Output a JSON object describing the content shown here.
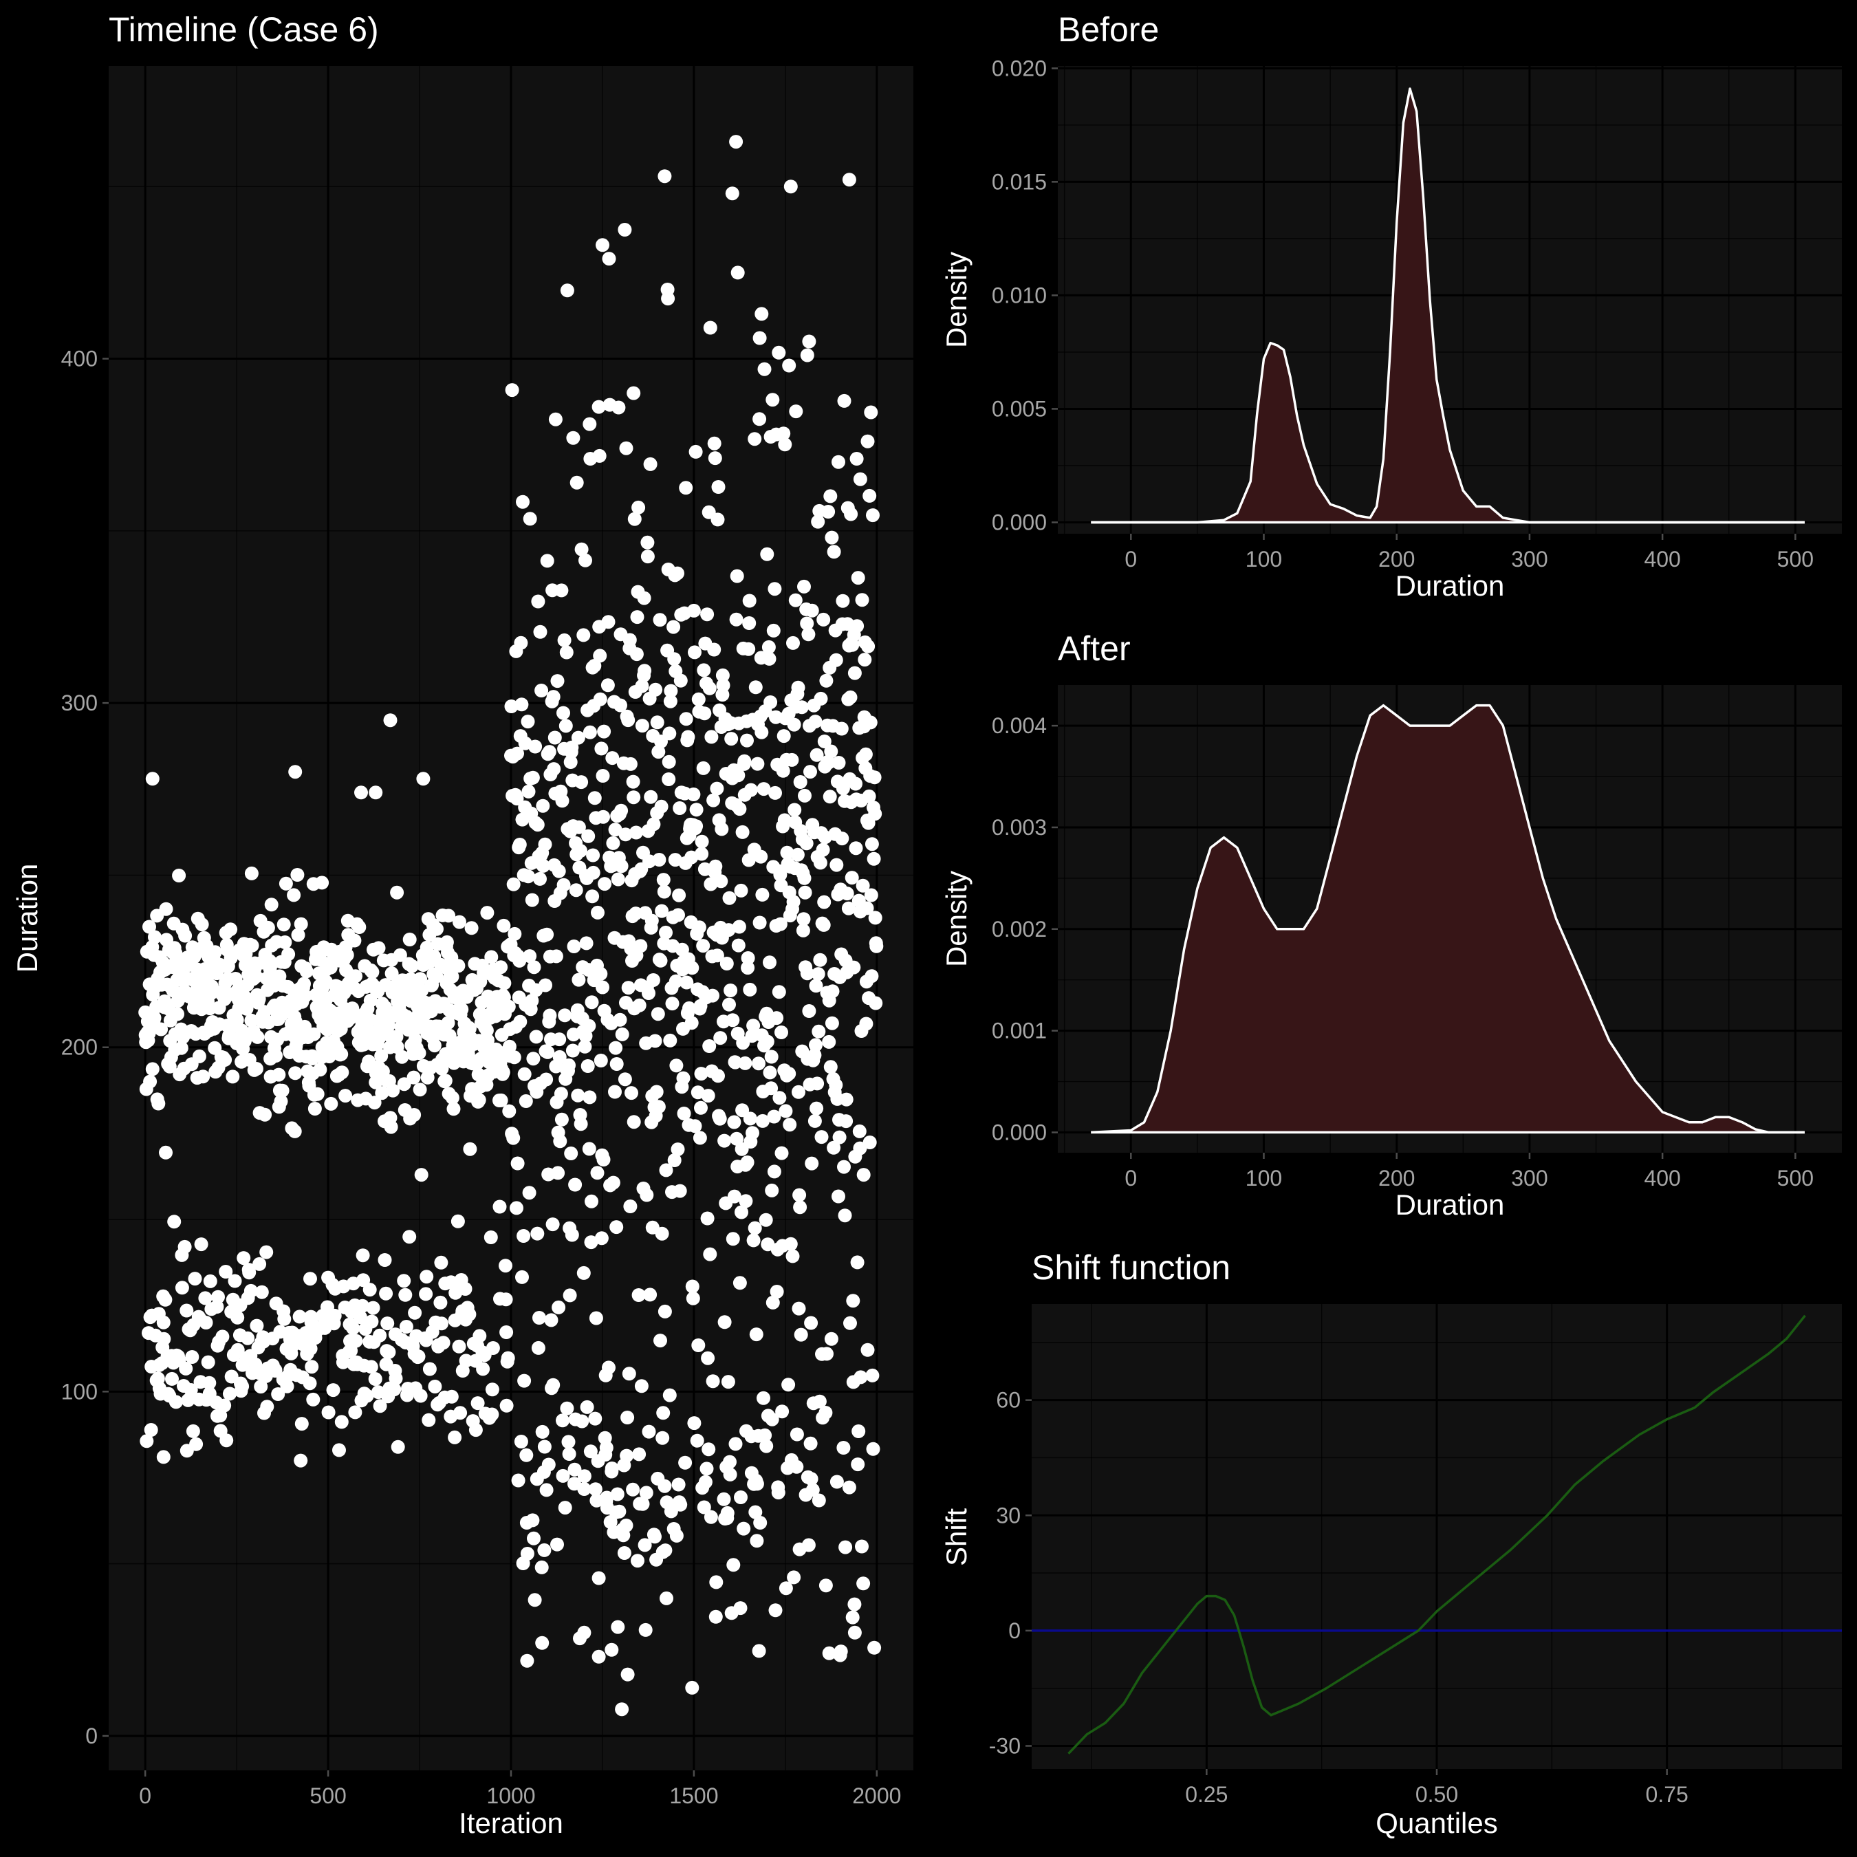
{
  "colors": {
    "background": "#000000",
    "panel": "#111111",
    "points": "#ffffff",
    "density_fill": "#3a1618",
    "density_line": "#ffffff",
    "shift_line": "#1a5c12",
    "zero_line": "#0a0a8c",
    "tick_text": "#a6a6a6"
  },
  "chart_data": [
    {
      "id": "timeline",
      "type": "scatter",
      "title": "Timeline (Case 6)",
      "xlabel": "Iteration",
      "ylabel": "Duration",
      "xlim": [
        -100,
        2100
      ],
      "ylim": [
        -10,
        485
      ],
      "xticks": [
        0,
        500,
        1000,
        1500,
        2000
      ],
      "yticks": [
        0,
        100,
        200,
        300,
        400
      ],
      "grid": true,
      "segments": [
        {
          "name": "before",
          "x_range": [
            0,
            1000
          ],
          "components": [
            {
              "center": 215,
              "sd": 14,
              "weight": 0.68,
              "trend": -8
            },
            {
              "center": 114,
              "sd": 14,
              "weight": 0.32,
              "trend": 0
            }
          ]
        },
        {
          "name": "after",
          "x_range": [
            1000,
            2000
          ],
          "components": [
            {
              "center": 75,
              "sd": 25,
              "weight": 0.2,
              "trend": 0
            },
            {
              "center": 200,
              "sd": 35,
              "weight": 0.36,
              "trend": 0
            },
            {
              "center": 275,
              "sd": 28,
              "weight": 0.34,
              "trend": 0
            },
            {
              "center": 345,
              "sd": 40,
              "weight": 0.1,
              "trend": 0
            }
          ]
        }
      ],
      "outliers": [
        {
          "x": 1615,
          "y": 463
        },
        {
          "x": 1420,
          "y": 453
        },
        {
          "x": 1925,
          "y": 452
        },
        {
          "x": 1765,
          "y": 450
        },
        {
          "x": 1605,
          "y": 448
        },
        {
          "x": 1250,
          "y": 433
        },
        {
          "x": 1620,
          "y": 425
        },
        {
          "x": 1685,
          "y": 413
        },
        {
          "x": 1680,
          "y": 406
        },
        {
          "x": 1815,
          "y": 405
        },
        {
          "x": 1810,
          "y": 401
        },
        {
          "x": 1760,
          "y": 398
        },
        {
          "x": 1335,
          "y": 390
        },
        {
          "x": 1240,
          "y": 386
        },
        {
          "x": 1215,
          "y": 381
        },
        {
          "x": 1170,
          "y": 377
        },
        {
          "x": 1315,
          "y": 374
        },
        {
          "x": 1725,
          "y": 378
        },
        {
          "x": 1975,
          "y": 376
        },
        {
          "x": 1895,
          "y": 370
        },
        {
          "x": 1955,
          "y": 365
        },
        {
          "x": 670,
          "y": 295
        },
        {
          "x": 410,
          "y": 280
        },
        {
          "x": 760,
          "y": 278
        },
        {
          "x": 20,
          "y": 278
        },
        {
          "x": 590,
          "y": 274
        },
        {
          "x": 630,
          "y": 274
        },
        {
          "x": 1495,
          "y": 14
        },
        {
          "x": 1240,
          "y": 23
        },
        {
          "x": 1275,
          "y": 25
        },
        {
          "x": 1870,
          "y": 24
        },
        {
          "x": 1200,
          "y": 30
        },
        {
          "x": 1085,
          "y": 27
        },
        {
          "x": 1940,
          "y": 30
        },
        {
          "x": 50,
          "y": 81
        },
        {
          "x": 530,
          "y": 83
        }
      ]
    },
    {
      "id": "before",
      "type": "area",
      "title": "Before",
      "xlabel": "Duration",
      "ylabel": "Density",
      "xlim": [
        -55,
        535
      ],
      "ylim": [
        -0.0005,
        0.0201
      ],
      "xticks": [
        0,
        100,
        200,
        300,
        400,
        500
      ],
      "yticks": [
        0.0,
        0.005,
        0.01,
        0.015,
        0.02
      ],
      "ytick_labels": [
        "0.000",
        "0.005",
        "0.010",
        "0.015",
        "0.020"
      ],
      "x": [
        -30,
        50,
        70,
        80,
        90,
        95,
        100,
        105,
        110,
        115,
        120,
        125,
        130,
        140,
        150,
        160,
        170,
        180,
        185,
        190,
        195,
        200,
        205,
        210,
        215,
        220,
        225,
        230,
        235,
        240,
        250,
        260,
        270,
        280,
        290,
        300,
        320,
        507
      ],
      "y": [
        0,
        0,
        0.0001,
        0.0004,
        0.0018,
        0.0048,
        0.0072,
        0.0079,
        0.0078,
        0.0076,
        0.0064,
        0.0047,
        0.0034,
        0.0017,
        0.0008,
        0.0006,
        0.0003,
        0.0002,
        0.0007,
        0.0028,
        0.0075,
        0.0132,
        0.0176,
        0.0191,
        0.0181,
        0.0143,
        0.0098,
        0.0063,
        0.0047,
        0.0032,
        0.0014,
        0.0007,
        0.0007,
        0.0002,
        0.0001,
        0,
        0,
        0
      ]
    },
    {
      "id": "after",
      "type": "area",
      "title": "After",
      "xlabel": "Duration",
      "ylabel": "Density",
      "xlim": [
        -55,
        535
      ],
      "ylim": [
        -0.0002,
        0.0044
      ],
      "xticks": [
        0,
        100,
        200,
        300,
        400,
        500
      ],
      "yticks": [
        0.0,
        0.001,
        0.002,
        0.003,
        0.004
      ],
      "ytick_labels": [
        "0.000",
        "0.001",
        "0.002",
        "0.003",
        "0.004"
      ],
      "x": [
        -30,
        0,
        10,
        20,
        30,
        40,
        50,
        60,
        70,
        80,
        90,
        100,
        110,
        120,
        130,
        140,
        150,
        160,
        170,
        180,
        190,
        200,
        210,
        220,
        230,
        240,
        250,
        260,
        270,
        280,
        290,
        300,
        310,
        320,
        330,
        340,
        350,
        360,
        380,
        400,
        420,
        430,
        440,
        450,
        460,
        470,
        480,
        507
      ],
      "y": [
        0,
        2e-05,
        0.0001,
        0.0004,
        0.001,
        0.0018,
        0.0024,
        0.0028,
        0.0029,
        0.0028,
        0.0025,
        0.0022,
        0.002,
        0.002,
        0.002,
        0.0022,
        0.0027,
        0.0032,
        0.0037,
        0.0041,
        0.0042,
        0.0041,
        0.004,
        0.004,
        0.004,
        0.004,
        0.0041,
        0.0042,
        0.0042,
        0.004,
        0.0035,
        0.003,
        0.0025,
        0.0021,
        0.0018,
        0.0015,
        0.0012,
        0.0009,
        0.0005,
        0.0002,
        0.0001,
        0.0001,
        0.00015,
        0.00015,
        0.0001,
        3e-05,
        0,
        0
      ]
    },
    {
      "id": "shift",
      "type": "line",
      "title": "Shift function",
      "xlabel": "Quantiles",
      "ylabel": "Shift",
      "xlim": [
        0.06,
        0.94
      ],
      "ylim": [
        -36,
        85
      ],
      "xticks": [
        0.25,
        0.5,
        0.75
      ],
      "xtick_labels": [
        "0.25",
        "0.50",
        "0.75"
      ],
      "yticks": [
        -30,
        0,
        30,
        60
      ],
      "hline": 0,
      "x": [
        0.1,
        0.12,
        0.14,
        0.16,
        0.18,
        0.2,
        0.22,
        0.24,
        0.25,
        0.26,
        0.27,
        0.28,
        0.29,
        0.3,
        0.31,
        0.32,
        0.33,
        0.35,
        0.38,
        0.42,
        0.46,
        0.48,
        0.5,
        0.54,
        0.58,
        0.62,
        0.65,
        0.68,
        0.72,
        0.75,
        0.78,
        0.8,
        0.83,
        0.86,
        0.88,
        0.9
      ],
      "y": [
        -32,
        -27,
        -24,
        -19,
        -11,
        -5,
        1,
        7,
        9,
        9,
        8,
        4,
        -4,
        -13,
        -20,
        -22,
        -21,
        -19,
        -15,
        -9,
        -3,
        0,
        5,
        13,
        21,
        30,
        38,
        44,
        51,
        55,
        58,
        62,
        67,
        72,
        76,
        82
      ]
    }
  ]
}
